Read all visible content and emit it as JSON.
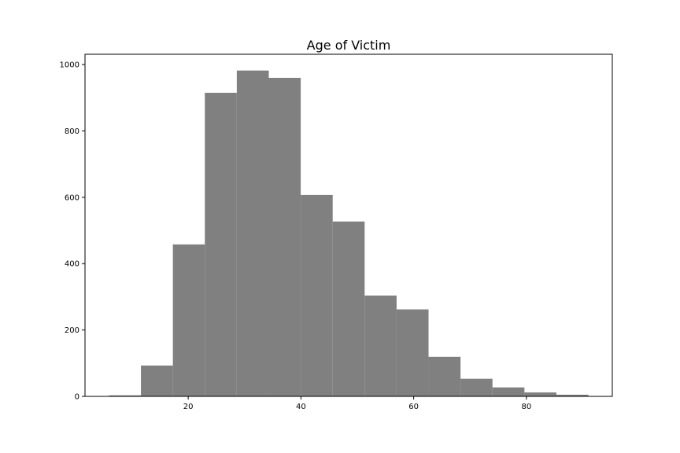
{
  "chart_data": {
    "type": "bar",
    "title": "Age of Victim",
    "xlabel": "",
    "ylabel": "",
    "bins": [
      {
        "x0": 5.94,
        "x1": 11.61,
        "value": 3
      },
      {
        "x0": 11.61,
        "x1": 17.28,
        "value": 93
      },
      {
        "x0": 17.28,
        "x1": 22.95,
        "value": 458
      },
      {
        "x0": 22.95,
        "x1": 28.62,
        "value": 915
      },
      {
        "x0": 28.62,
        "x1": 34.29,
        "value": 982
      },
      {
        "x0": 34.29,
        "x1": 39.96,
        "value": 960
      },
      {
        "x0": 39.96,
        "x1": 45.63,
        "value": 607
      },
      {
        "x0": 45.63,
        "x1": 51.3,
        "value": 527
      },
      {
        "x0": 51.3,
        "x1": 56.97,
        "value": 304
      },
      {
        "x0": 56.97,
        "x1": 62.64,
        "value": 262
      },
      {
        "x0": 62.64,
        "x1": 68.31,
        "value": 119
      },
      {
        "x0": 68.31,
        "x1": 73.98,
        "value": 53
      },
      {
        "x0": 73.98,
        "x1": 79.65,
        "value": 27
      },
      {
        "x0": 79.65,
        "x1": 85.32,
        "value": 12
      },
      {
        "x0": 85.32,
        "x1": 90.99,
        "value": 5
      }
    ],
    "xlim": [
      1.69,
      95.24
    ],
    "ylim": [
      0,
      1031
    ],
    "xticks": [
      20,
      40,
      60,
      80
    ],
    "yticks": [
      0,
      200,
      400,
      600,
      800,
      1000
    ],
    "bar_color": "#808080",
    "grid": false
  }
}
